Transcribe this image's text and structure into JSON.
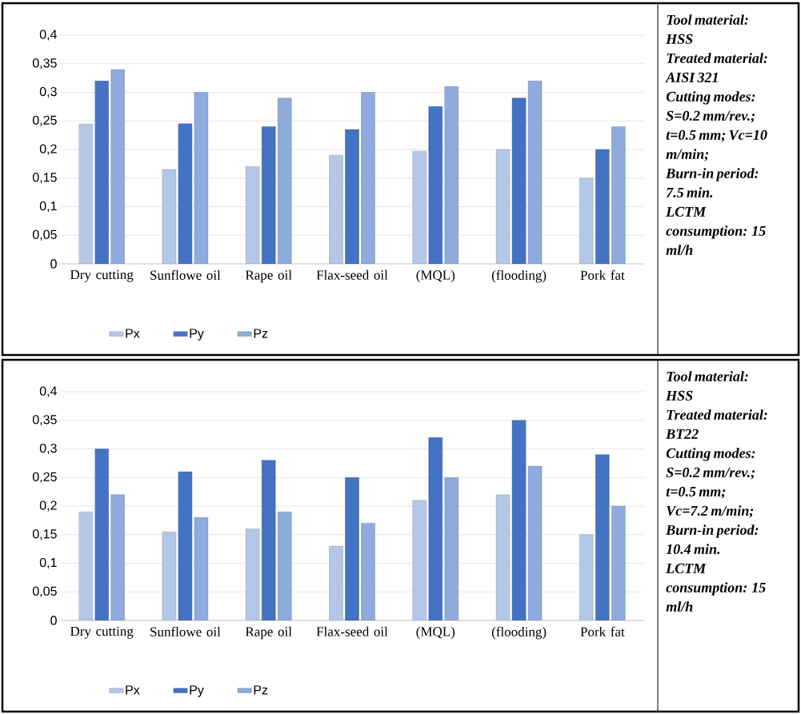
{
  "chart_data": [
    {
      "type": "bar",
      "categories": [
        "Dry cutting",
        "Sunflowe oil",
        "Rape oil",
        "Flax-seed oil",
        "(MQL)",
        "(flooding)",
        "Pork fat"
      ],
      "series": [
        {
          "name": "Px",
          "color": "#b4c7e7",
          "values": [
            0.245,
            0.165,
            0.17,
            0.19,
            0.197,
            0.2,
            0.15
          ]
        },
        {
          "name": "Py",
          "color": "#4472c4",
          "values": [
            0.32,
            0.245,
            0.24,
            0.235,
            0.275,
            0.29,
            0.2
          ]
        },
        {
          "name": "Pz",
          "color": "#8faadc",
          "values": [
            0.34,
            0.3,
            0.29,
            0.3,
            0.31,
            0.32,
            0.24
          ]
        }
      ],
      "ylim": [
        0,
        0.4
      ],
      "yticks": [
        0,
        {
          "value": 0.05,
          "label": "0,05"
        },
        {
          "value": 0.1,
          "label": "0,1"
        },
        {
          "value": 0.15,
          "label": "0,15"
        },
        {
          "value": 0.2,
          "label": "0,2"
        },
        {
          "value": 0.25,
          "label": "0,25"
        },
        {
          "value": 0.3,
          "label": "0,3"
        },
        {
          "value": 0.35,
          "label": "0,35"
        },
        {
          "value": 0.4,
          "label": "0,4"
        }
      ],
      "grid": "y",
      "legend": "bottom",
      "annotations": [
        "Tool material: HSS",
        "Treated material: AISI 321",
        "Cutting modes: S=0.2 mm/rev.; t=0.5 mm; Vc=10 m/min;",
        "Burn-in period: 7.5 min.",
        "LCTM consumption: 15 ml/h"
      ]
    },
    {
      "type": "bar",
      "categories": [
        "Dry cutting",
        "Sunflowe oil",
        "Rape oil",
        "Flax-seed oil",
        "(MQL)",
        "(flooding)",
        "Pork fat"
      ],
      "series": [
        {
          "name": "Px",
          "color": "#b4c7e7",
          "values": [
            0.19,
            0.155,
            0.16,
            0.13,
            0.21,
            0.22,
            0.15
          ]
        },
        {
          "name": "Py",
          "color": "#4472c4",
          "values": [
            0.3,
            0.26,
            0.28,
            0.25,
            0.32,
            0.35,
            0.29
          ]
        },
        {
          "name": "Pz",
          "color": "#8faadc",
          "values": [
            0.22,
            0.18,
            0.19,
            0.17,
            0.25,
            0.27,
            0.2
          ]
        }
      ],
      "ylim": [
        0,
        0.4
      ],
      "yticks": [
        0,
        {
          "value": 0.05,
          "label": "0,05"
        },
        {
          "value": 0.1,
          "label": "0,1"
        },
        {
          "value": 0.15,
          "label": "0,15"
        },
        {
          "value": 0.2,
          "label": "0,2"
        },
        {
          "value": 0.25,
          "label": "0,25"
        },
        {
          "value": 0.3,
          "label": "0,3"
        },
        {
          "value": 0.35,
          "label": "0,35"
        },
        {
          "value": 0.4,
          "label": "0,4"
        }
      ],
      "grid": "y",
      "legend": "bottom",
      "annotations": [
        "Tool material: HSS",
        "Treated material: BT22",
        "Cutting modes: S=0.2 mm/rev.; t=0.5 mm; Vc=7.2 m/min;",
        "Burn-in period: 10.4 min.",
        "LCTM consumption: 15 ml/h"
      ]
    }
  ]
}
